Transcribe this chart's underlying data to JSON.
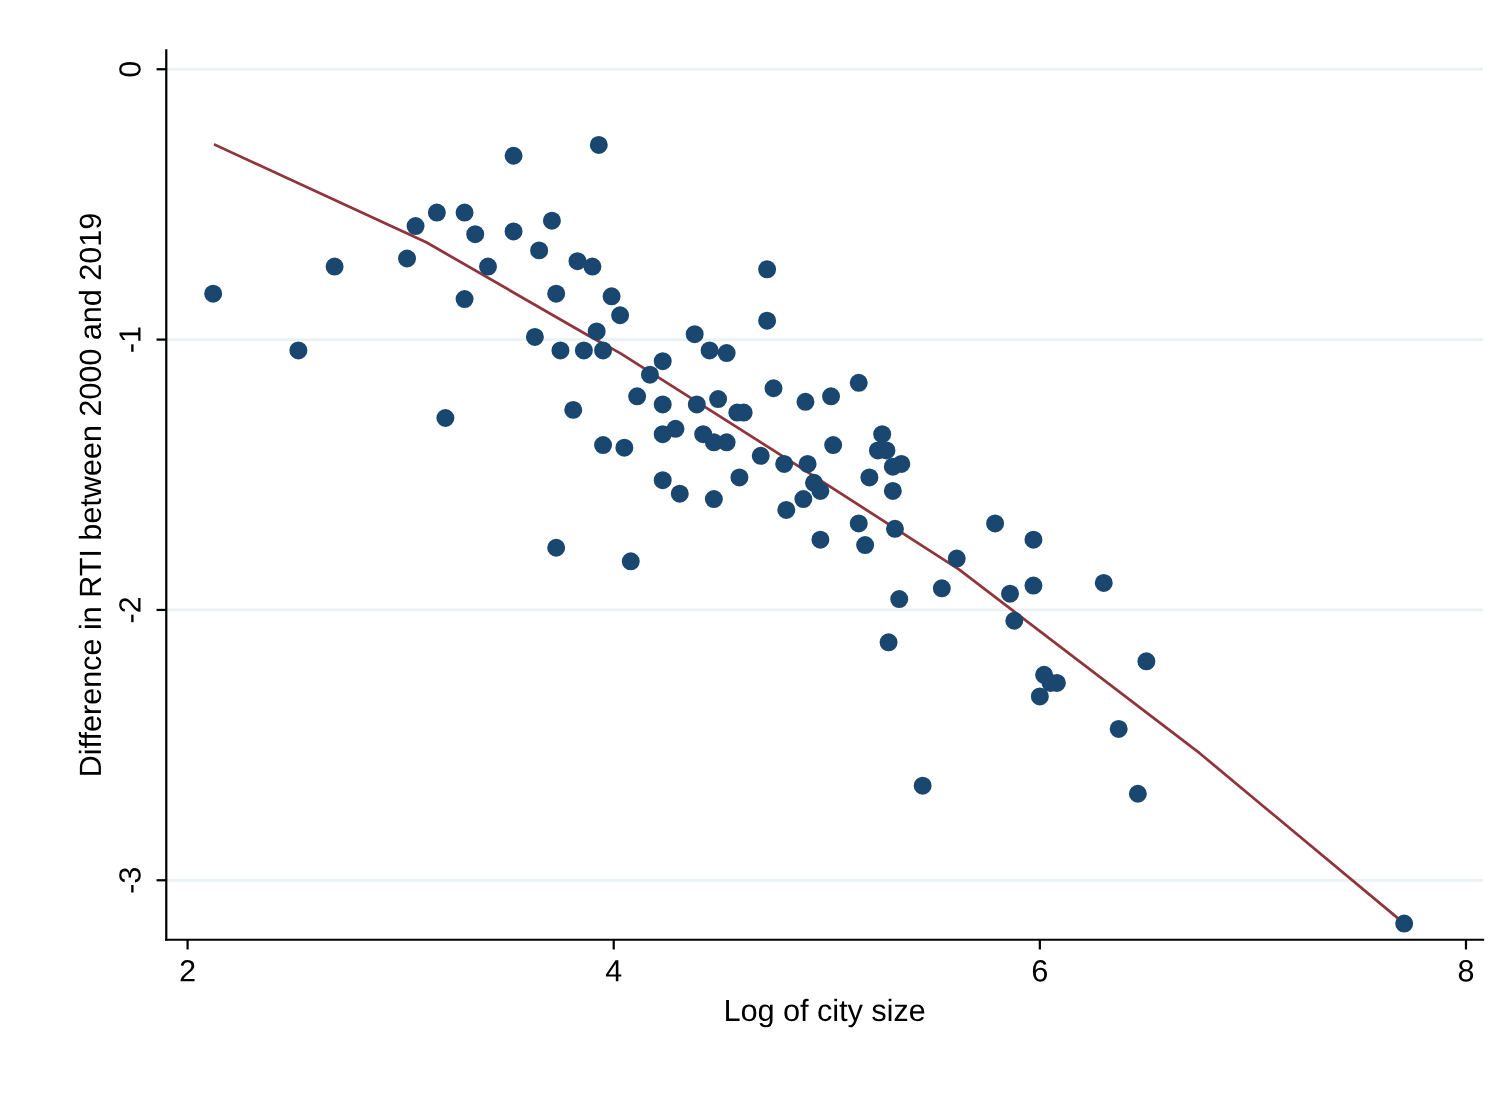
{
  "chart_data": {
    "type": "scatter",
    "xlabel": "Log of city size",
    "ylabel": "Difference in RTI between 2000 and 2019",
    "xlim": [
      1.9,
      8.08
    ],
    "ylim": [
      -3.22,
      0.07
    ],
    "xticks": [
      2,
      4,
      6,
      8
    ],
    "yticks": [
      0,
      -1,
      -2,
      -3
    ],
    "grid": "y",
    "series": [
      {
        "marker": "circle",
        "color": "#1a476f",
        "x": [
          2.12,
          2.52,
          2.69,
          3.03,
          3.07,
          3.17,
          3.3,
          3.35,
          3.41,
          3.3,
          3.21,
          3.53,
          3.53,
          3.65,
          3.71,
          3.73,
          3.63,
          3.75,
          3.86,
          3.95,
          3.92,
          3.81,
          3.95,
          3.73,
          3.93,
          3.83,
          3.9,
          3.99,
          4.03,
          4.05,
          4.08,
          4.38,
          4.45,
          4.53,
          4.23,
          4.17,
          4.11,
          4.23,
          4.39,
          4.49,
          4.58,
          4.61,
          4.72,
          4.72,
          4.75,
          4.23,
          4.29,
          4.42,
          4.47,
          4.53,
          4.23,
          4.31,
          4.47,
          4.59,
          4.69,
          4.8,
          4.9,
          5.02,
          5.15,
          4.91,
          5.03,
          4.81,
          4.89,
          4.94,
          4.97,
          4.97,
          5.15,
          5.18,
          5.2,
          5.26,
          5.24,
          5.28,
          5.31,
          5.35,
          5.31,
          5.32,
          5.61,
          5.54,
          5.34,
          5.79,
          5.29,
          5.45,
          5.97,
          5.97,
          5.86,
          5.88,
          6.3,
          6.02,
          6.05,
          6.08,
          6.0,
          6.5,
          6.37,
          6.46,
          7.71
        ],
        "values": [
          -0.83,
          -1.04,
          -0.73,
          -0.7,
          -0.58,
          -0.53,
          -0.53,
          -0.61,
          -0.73,
          -0.85,
          -1.29,
          -0.32,
          -0.6,
          -0.67,
          -0.56,
          -0.83,
          -0.99,
          -1.04,
          -1.04,
          -1.04,
          -0.97,
          -1.26,
          -1.39,
          -1.77,
          -0.28,
          -0.71,
          -0.73,
          -0.84,
          -0.91,
          -1.4,
          -1.82,
          -0.98,
          -1.04,
          -1.05,
          -1.08,
          -1.13,
          -1.21,
          -1.24,
          -1.24,
          -1.22,
          -1.27,
          -1.27,
          -0.74,
          -0.93,
          -1.18,
          -1.35,
          -1.33,
          -1.35,
          -1.38,
          -1.38,
          -1.52,
          -1.57,
          -1.59,
          -1.51,
          -1.43,
          -1.46,
          -1.23,
          -1.21,
          -1.16,
          -1.46,
          -1.39,
          -1.63,
          -1.59,
          -1.53,
          -1.56,
          -1.74,
          -1.68,
          -1.76,
          -1.51,
          -1.35,
          -1.41,
          -1.41,
          -1.47,
          -1.46,
          -1.56,
          -1.7,
          -1.81,
          -1.92,
          -1.96,
          -1.68,
          -2.12,
          -2.65,
          -1.74,
          -1.91,
          -1.94,
          -2.04,
          -1.9,
          -2.24,
          -2.27,
          -2.27,
          -2.32,
          -2.19,
          -2.44,
          -2.68,
          -3.16
        ]
      },
      {
        "type": "line",
        "marker": "none",
        "color": "#90353b",
        "x": [
          2.13,
          3.12,
          3.87,
          4.03,
          4.87,
          5.62,
          6.75,
          7.71
        ],
        "values": [
          -0.28,
          -0.64,
          -0.98,
          -1.05,
          -1.47,
          -1.85,
          -2.53,
          -3.16
        ]
      }
    ]
  }
}
